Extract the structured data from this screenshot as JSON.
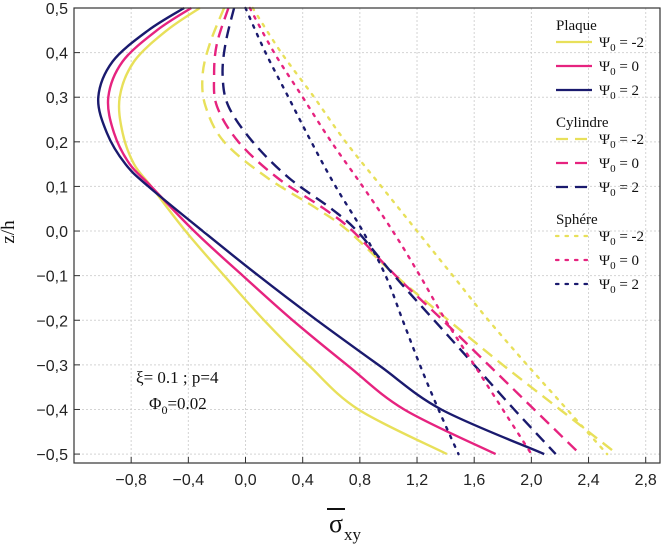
{
  "chart_data": {
    "type": "line",
    "xlabel": "σ",
    "xlabel_overbar": true,
    "xlabel_sub": "xy",
    "ylabel": "z/h",
    "xlim": [
      -1.2,
      2.9
    ],
    "ylim": [
      -0.52,
      0.5
    ],
    "xticks": [
      -0.8,
      -0.4,
      0.0,
      0.4,
      0.8,
      1.2,
      1.6,
      2.0,
      2.4,
      2.8
    ],
    "xtick_labels": [
      "−0,8",
      "−0,4",
      "0,0",
      "0,4",
      "0,8",
      "1,2",
      "1,6",
      "2,0",
      "2,4",
      "2,8"
    ],
    "yticks": [
      0.5,
      0.4,
      0.3,
      0.2,
      0.1,
      0.0,
      -0.1,
      -0.2,
      -0.3,
      -0.4,
      -0.5
    ],
    "ytick_labels": [
      "0,5",
      "0,4",
      "0,3",
      "0,2",
      "0,1",
      "0,0",
      "−0,1",
      "−0,2",
      "−0,3",
      "−0,4",
      "−0,5"
    ],
    "grid": true,
    "annotation": {
      "line1": "ξ= 0.1 ; p=4",
      "line2_main": "Φ",
      "line2_sub": "0",
      "line2_rest": "=0.02"
    },
    "legend_groups": [
      {
        "title": "Plaque"
      },
      {
        "title": "Cylindre"
      },
      {
        "title": "Sphére"
      }
    ],
    "legend_symbol": "Ψ",
    "legend_sub": "0",
    "series": [
      {
        "name": "Ψ0 = -2",
        "group": "Plaque",
        "label": "= -2",
        "color": "#e8e05a",
        "dash": "solid",
        "points": [
          [
            -0.32,
            0.5
          ],
          [
            -0.55,
            0.45
          ],
          [
            -0.78,
            0.38
          ],
          [
            -0.88,
            0.3
          ],
          [
            -0.86,
            0.22
          ],
          [
            -0.78,
            0.15
          ],
          [
            -0.66,
            0.1
          ],
          [
            -0.42,
            0.0
          ],
          [
            -0.15,
            -0.1
          ],
          [
            0.13,
            -0.2
          ],
          [
            0.44,
            -0.3
          ],
          [
            0.79,
            -0.4
          ],
          [
            1.41,
            -0.5
          ]
        ]
      },
      {
        "name": "Ψ0 = 0",
        "group": "Plaque",
        "label": "= 0",
        "color": "#e6237f",
        "dash": "solid",
        "points": [
          [
            -0.38,
            0.5
          ],
          [
            -0.62,
            0.45
          ],
          [
            -0.86,
            0.38
          ],
          [
            -0.96,
            0.3
          ],
          [
            -0.92,
            0.22
          ],
          [
            -0.81,
            0.15
          ],
          [
            -0.66,
            0.1
          ],
          [
            -0.36,
            0.0
          ],
          [
            -0.02,
            -0.1
          ],
          [
            0.33,
            -0.2
          ],
          [
            0.71,
            -0.3
          ],
          [
            1.11,
            -0.4
          ],
          [
            1.75,
            -0.5
          ]
        ]
      },
      {
        "name": "Ψ0 = 2",
        "group": "Plaque",
        "label": "= 2",
        "color": "#1a1a6e",
        "dash": "solid",
        "points": [
          [
            -0.43,
            0.5
          ],
          [
            -0.68,
            0.45
          ],
          [
            -0.93,
            0.38
          ],
          [
            -1.03,
            0.3
          ],
          [
            -0.97,
            0.22
          ],
          [
            -0.84,
            0.15
          ],
          [
            -0.68,
            0.1
          ],
          [
            -0.3,
            0.0
          ],
          [
            0.09,
            -0.1
          ],
          [
            0.5,
            -0.2
          ],
          [
            0.93,
            -0.3
          ],
          [
            1.37,
            -0.4
          ],
          [
            2.09,
            -0.5
          ]
        ]
      },
      {
        "name": "Ψ0 = -2 (Cylindre)",
        "group": "Cylindre",
        "label": "= -2",
        "color": "#e8e05a",
        "dash": "dashed",
        "points": [
          [
            -0.15,
            0.5
          ],
          [
            -0.25,
            0.42
          ],
          [
            -0.3,
            0.35
          ],
          [
            -0.28,
            0.28
          ],
          [
            -0.15,
            0.2
          ],
          [
            0.15,
            0.12
          ],
          [
            0.5,
            0.05
          ],
          [
            0.72,
            0.0
          ],
          [
            1.05,
            -0.1
          ],
          [
            1.42,
            -0.2
          ],
          [
            1.8,
            -0.3
          ],
          [
            2.2,
            -0.4
          ],
          [
            2.6,
            -0.5
          ]
        ]
      },
      {
        "name": "Ψ0 = 0 (Cylindre)",
        "group": "Cylindre",
        "label": "= 0",
        "color": "#e6237f",
        "dash": "dashed",
        "points": [
          [
            -0.12,
            0.5
          ],
          [
            -0.2,
            0.42
          ],
          [
            -0.22,
            0.35
          ],
          [
            -0.2,
            0.28
          ],
          [
            -0.05,
            0.2
          ],
          [
            0.22,
            0.12
          ],
          [
            0.55,
            0.05
          ],
          [
            0.75,
            0.0
          ],
          [
            1.05,
            -0.1
          ],
          [
            1.38,
            -0.2
          ],
          [
            1.7,
            -0.3
          ],
          [
            2.02,
            -0.4
          ],
          [
            2.34,
            -0.5
          ]
        ]
      },
      {
        "name": "Ψ0 = 2 (Cylindre)",
        "group": "Cylindre",
        "label": "= 2",
        "color": "#1a1a6e",
        "dash": "dashed",
        "points": [
          [
            -0.08,
            0.5
          ],
          [
            -0.14,
            0.42
          ],
          [
            -0.16,
            0.35
          ],
          [
            -0.12,
            0.28
          ],
          [
            0.05,
            0.2
          ],
          [
            0.3,
            0.12
          ],
          [
            0.6,
            0.05
          ],
          [
            0.78,
            0.0
          ],
          [
            1.04,
            -0.1
          ],
          [
            1.32,
            -0.2
          ],
          [
            1.6,
            -0.3
          ],
          [
            1.88,
            -0.4
          ],
          [
            2.17,
            -0.5
          ]
        ]
      },
      {
        "name": "Ψ0 = -2 (Sphére)",
        "group": "Sphére",
        "label": "= -2",
        "color": "#e8e05a",
        "dash": "dotted",
        "points": [
          [
            0.05,
            0.5
          ],
          [
            0.25,
            0.4
          ],
          [
            0.48,
            0.3
          ],
          [
            0.7,
            0.2
          ],
          [
            0.95,
            0.1
          ],
          [
            1.2,
            0.0
          ],
          [
            1.45,
            -0.1
          ],
          [
            1.7,
            -0.2
          ],
          [
            1.97,
            -0.3
          ],
          [
            2.25,
            -0.4
          ],
          [
            2.53,
            -0.5
          ]
        ]
      },
      {
        "name": "Ψ0 = 0 (Sphére)",
        "group": "Sphére",
        "label": "= 0",
        "color": "#e6237f",
        "dash": "dotted",
        "points": [
          [
            0.03,
            0.5
          ],
          [
            0.2,
            0.4
          ],
          [
            0.4,
            0.3
          ],
          [
            0.6,
            0.2
          ],
          [
            0.82,
            0.1
          ],
          [
            1.03,
            0.0
          ],
          [
            1.22,
            -0.1
          ],
          [
            1.4,
            -0.2
          ],
          [
            1.6,
            -0.3
          ],
          [
            1.8,
            -0.4
          ],
          [
            2.0,
            -0.5
          ]
        ]
      },
      {
        "name": "Ψ0 = 2 (Sphére)",
        "group": "Sphére",
        "label": "= 2",
        "color": "#1a1a6e",
        "dash": "dotted",
        "points": [
          [
            0.0,
            0.5
          ],
          [
            0.14,
            0.4
          ],
          [
            0.3,
            0.3
          ],
          [
            0.46,
            0.2
          ],
          [
            0.63,
            0.1
          ],
          [
            0.82,
            0.0
          ],
          [
            0.98,
            -0.1
          ],
          [
            1.1,
            -0.2
          ],
          [
            1.22,
            -0.3
          ],
          [
            1.35,
            -0.4
          ],
          [
            1.49,
            -0.5
          ]
        ]
      }
    ]
  }
}
